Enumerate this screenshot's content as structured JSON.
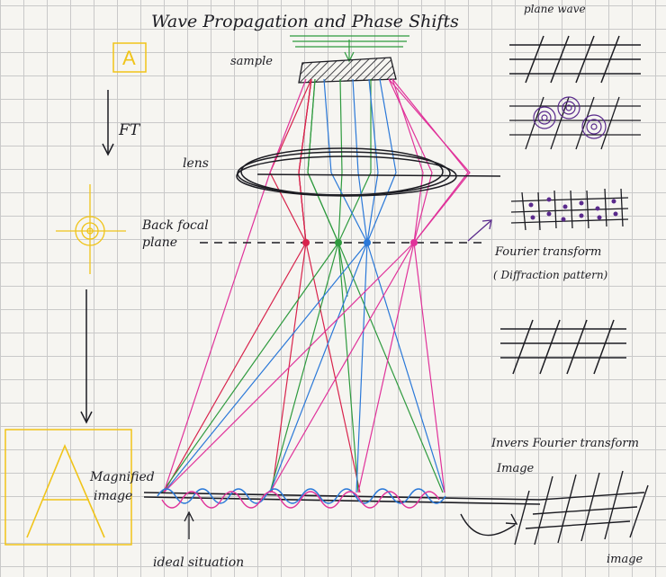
{
  "title": "Wave Propagation and Phase Shifts",
  "labels": {
    "sample": "sample",
    "lens": "lens",
    "back_focal_plane_1": "Back focal",
    "back_focal_plane_2": "plane",
    "magnified_1": "Magnified",
    "magnified_2": "image",
    "ideal": "ideal situation",
    "ft": "FT"
  },
  "side_panel": {
    "plane_wave": "plane wave",
    "fourier_1": "Fourier transform",
    "fourier_2": "( Diffraction pattern)",
    "inverse": "Invers Fourier transform",
    "image_top": "Image",
    "image_bottom": "image"
  },
  "letters": {
    "small_a": "A",
    "big_a": "A"
  },
  "colors": {
    "ink": "#1c1c22",
    "red": "#d8234c",
    "green": "#2e9a3e",
    "blue": "#2a78d8",
    "magenta": "#e0329a",
    "yellow": "#f0c419",
    "purple": "#5a2a8c"
  }
}
